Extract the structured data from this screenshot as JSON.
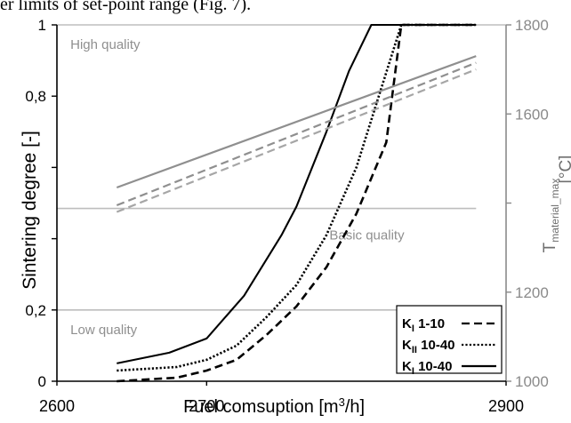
{
  "page_header_text": "er limits of set-point range (Fig. 7).",
  "chart_data": {
    "type": "line",
    "xlabel": "Fuel comsuption [m³/h]",
    "xlabel_parts": {
      "main": "Fuel comsuption [m",
      "sup": "3",
      "tail": "/h]"
    },
    "ylabel": "Sintering degree [-]",
    "y2label": "T_material_max [°C]",
    "y2label_parts": {
      "main": "T",
      "sub": "material_max",
      "unit": "[°C]"
    },
    "xlim": [
      2600,
      2900
    ],
    "ylim": [
      0,
      1
    ],
    "y2lim": [
      1000,
      1800
    ],
    "x_ticks": [
      {
        "value": 2600,
        "label": "2600"
      },
      {
        "value": 2700,
        "label": "2700"
      },
      {
        "value": 2900,
        "label": "2900"
      }
    ],
    "y_ticks": [
      {
        "value": 0,
        "label": "0"
      },
      {
        "value": 0.2,
        "label": "0,2"
      },
      {
        "value": 0.4,
        "label": ""
      },
      {
        "value": 0.6,
        "label": ""
      },
      {
        "value": 0.8,
        "label": "0,8"
      },
      {
        "value": 1,
        "label": "1"
      }
    ],
    "y2_ticks": [
      {
        "value": 1000,
        "label": "1000"
      },
      {
        "value": 1200,
        "label": "1200"
      },
      {
        "value": 1400,
        "label": ""
      },
      {
        "value": 1600,
        "label": "1600"
      },
      {
        "value": 1800,
        "label": "1800"
      }
    ],
    "reference_lines": [
      {
        "y": 1.0,
        "label": "High quality",
        "label_x": 2609,
        "label_y": 0.945,
        "x_range": [
          2600,
          2900
        ]
      },
      {
        "y": 0.485,
        "label": "Basic quality",
        "label_x": 2782,
        "label_y": 0.41,
        "x_range": [
          2600,
          2880
        ]
      },
      {
        "y": 0.2,
        "label": "Low quality",
        "label_x": 2609,
        "label_y": 0.145,
        "x_range": [
          2600,
          2880
        ]
      }
    ],
    "series": [
      {
        "name": "K_I 1-10",
        "name_parts": {
          "main": "K",
          "sub": "I",
          "tail": " 1-10"
        },
        "axis": "left",
        "dash": "dashed",
        "color": "#000000",
        "x": [
          2640,
          2680,
          2700,
          2720,
          2740,
          2760,
          2780,
          2800,
          2820,
          2830,
          2850,
          2880
        ],
        "y": [
          0.0,
          0.01,
          0.03,
          0.06,
          0.13,
          0.21,
          0.32,
          0.47,
          0.67,
          1.0,
          1.0,
          1.0
        ]
      },
      {
        "name": "K_II 10-40",
        "name_parts": {
          "main": "K",
          "sub": "II",
          "tail": " 10-40"
        },
        "axis": "left",
        "dash": "dotted",
        "color": "#000000",
        "x": [
          2640,
          2680,
          2700,
          2720,
          2740,
          2760,
          2780,
          2800,
          2815,
          2830,
          2850,
          2880
        ],
        "y": [
          0.03,
          0.04,
          0.06,
          0.1,
          0.18,
          0.27,
          0.41,
          0.6,
          0.8,
          1.0,
          1.0,
          1.0
        ]
      },
      {
        "name": "K_I 10-40",
        "name_parts": {
          "main": "K",
          "sub": "I",
          "tail": " 10-40"
        },
        "axis": "left",
        "dash": "solid",
        "color": "#000000",
        "x": [
          2640,
          2675,
          2700,
          2725,
          2750,
          2760,
          2780,
          2795,
          2810,
          2820,
          2850,
          2880
        ],
        "y": [
          0.05,
          0.08,
          0.12,
          0.24,
          0.41,
          0.49,
          0.7,
          0.87,
          1.0,
          1.0,
          1.0,
          1.0
        ]
      },
      {
        "axis": "right",
        "dash": "solid",
        "color": "#8f8f8f",
        "x": [
          2640,
          2880
        ],
        "y": [
          1435,
          1730
        ]
      },
      {
        "axis": "right",
        "dash": "dashed",
        "color": "#8f8f8f",
        "x": [
          2640,
          2880
        ],
        "y": [
          1395,
          1715
        ]
      },
      {
        "axis": "right",
        "dash": "dashed",
        "color": "#a6a6a6",
        "x": [
          2640,
          2880
        ],
        "y": [
          1380,
          1700
        ]
      }
    ],
    "legend": {
      "position": "bottom-right"
    },
    "grid": false
  }
}
